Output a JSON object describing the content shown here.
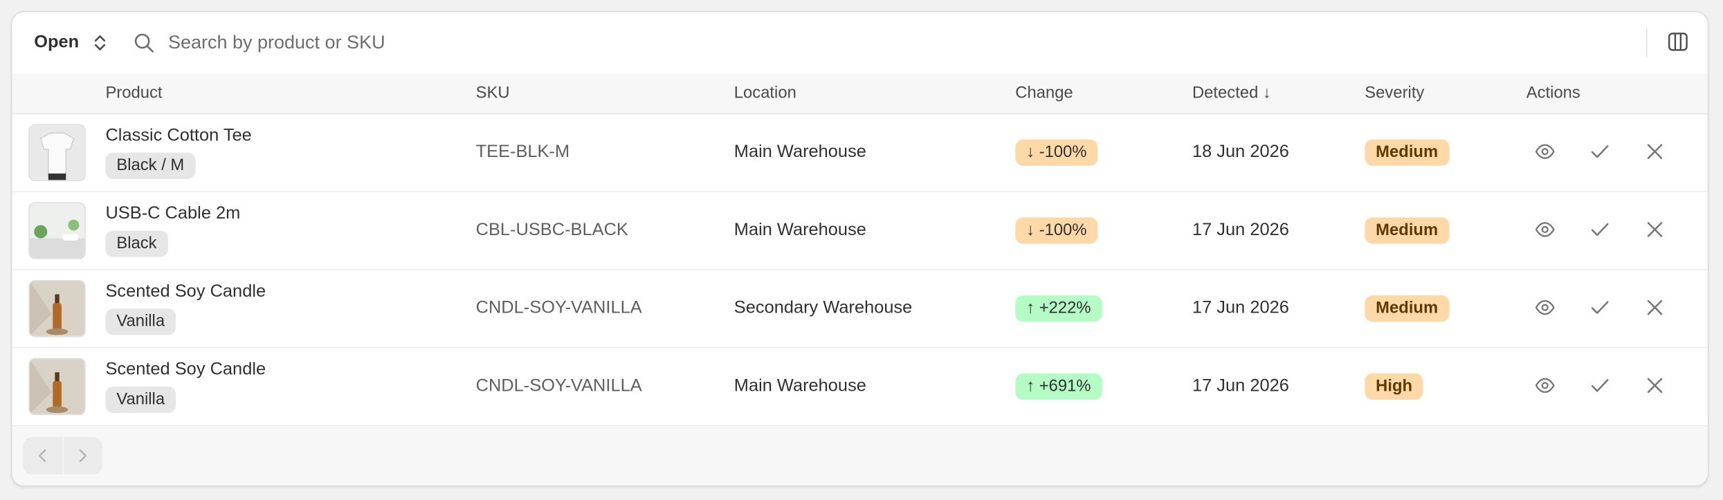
{
  "toolbar": {
    "filter": "Open",
    "search_placeholder": "Search by product or SKU"
  },
  "table": {
    "headers": [
      "Product",
      "SKU",
      "Location",
      "Change",
      "Detected ↓",
      "Severity",
      "Actions"
    ],
    "rows": [
      {
        "product": "Classic Cotton Tee",
        "variant": "Black / M",
        "sku": "TEE-BLK-M",
        "location": "Main Warehouse",
        "change": "↓ -100%",
        "change_color": "#ffd8a8",
        "detected": "18 Jun 2026",
        "severity": "Medium",
        "severity_color": "#ffd8a8"
      },
      {
        "product": "USB-C Cable 2m",
        "variant": "Black",
        "sku": "CBL-USBC-BLACK",
        "location": "Main Warehouse",
        "change": "↓ -100%",
        "change_color": "#ffd8a8",
        "detected": "17 Jun 2026",
        "severity": "Medium",
        "severity_color": "#ffd8a8"
      },
      {
        "product": "Scented Soy Candle",
        "variant": "Vanilla",
        "sku": "CNDL-SOY-VANILLA",
        "location": "Secondary Warehouse",
        "change": "↑ +222%",
        "change_color": "#b4fbc6",
        "detected": "17 Jun 2026",
        "severity": "Medium",
        "severity_color": "#ffd8a8"
      },
      {
        "product": "Scented Soy Candle",
        "variant": "Vanilla",
        "sku": "CNDL-SOY-VANILLA",
        "location": "Main Warehouse",
        "change": "↑ +691%",
        "change_color": "#b4fbc6",
        "detected": "17 Jun 2026",
        "severity": "High",
        "severity_color": "#ffd8a8"
      }
    ]
  }
}
